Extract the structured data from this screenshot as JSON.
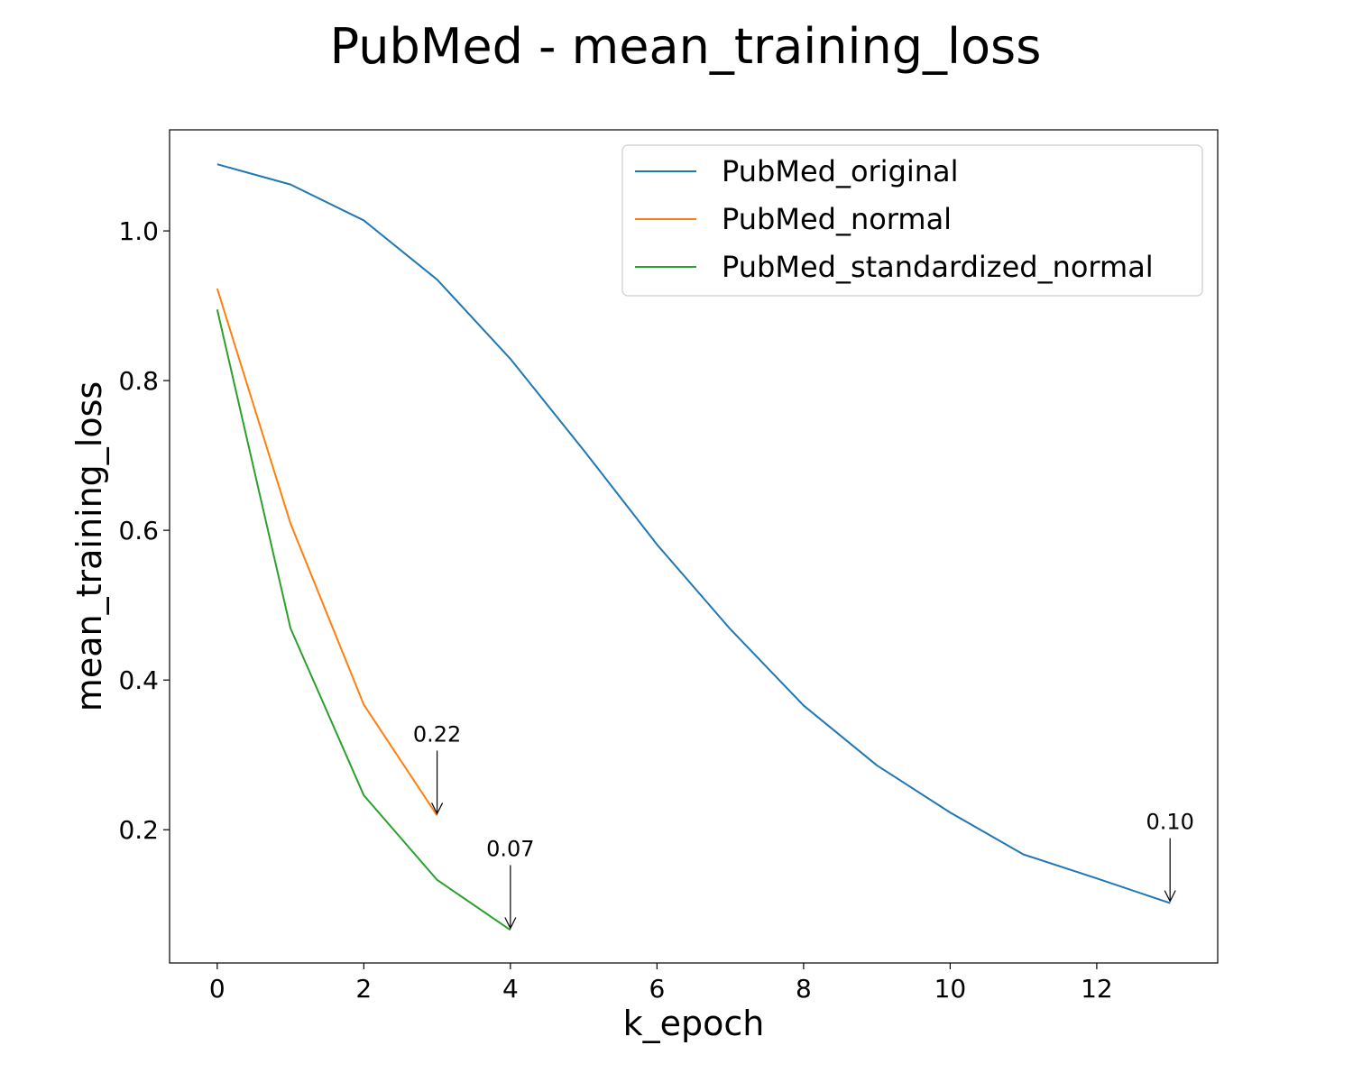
{
  "chart_data": {
    "type": "line",
    "title": "PubMed - mean_training_loss",
    "xlabel": "k_epoch",
    "ylabel": "mean_training_loss",
    "xlim": [
      -0.65,
      13.65
    ],
    "ylim": [
      0.022,
      1.135
    ],
    "xticks": [
      0,
      2,
      4,
      6,
      8,
      10,
      12
    ],
    "yticks": [
      0.2,
      0.4,
      0.6,
      0.8,
      1.0
    ],
    "xtick_labels": [
      "0",
      "2",
      "4",
      "6",
      "8",
      "10",
      "12"
    ],
    "ytick_labels": [
      "0.2",
      "0.4",
      "0.6",
      "0.8",
      "1.0"
    ],
    "grid": false,
    "legend_position": "top-right",
    "series": [
      {
        "name": "PubMed_original",
        "color": "#1f77b4",
        "x": [
          0,
          1,
          2,
          3,
          4,
          5,
          6,
          7,
          8,
          9,
          10,
          11,
          12,
          13
        ],
        "y": [
          1.089,
          1.062,
          1.014,
          0.935,
          0.829,
          0.707,
          0.581,
          0.468,
          0.366,
          0.286,
          0.223,
          0.167,
          0.135,
          0.102
        ]
      },
      {
        "name": "PubMed_normal",
        "color": "#ff7f0e",
        "x": [
          0,
          1,
          2,
          3
        ],
        "y": [
          0.923,
          0.609,
          0.367,
          0.219
        ]
      },
      {
        "name": "PubMed_standardized_normal",
        "color": "#2ca02c",
        "x": [
          0,
          1,
          2,
          3,
          4
        ],
        "y": [
          0.895,
          0.469,
          0.246,
          0.133,
          0.066
        ]
      }
    ],
    "annotations": [
      {
        "text": "0.22",
        "x": 3,
        "y": 0.219
      },
      {
        "text": "0.07",
        "x": 4,
        "y": 0.066
      },
      {
        "text": "0.10",
        "x": 13,
        "y": 0.102
      }
    ]
  }
}
